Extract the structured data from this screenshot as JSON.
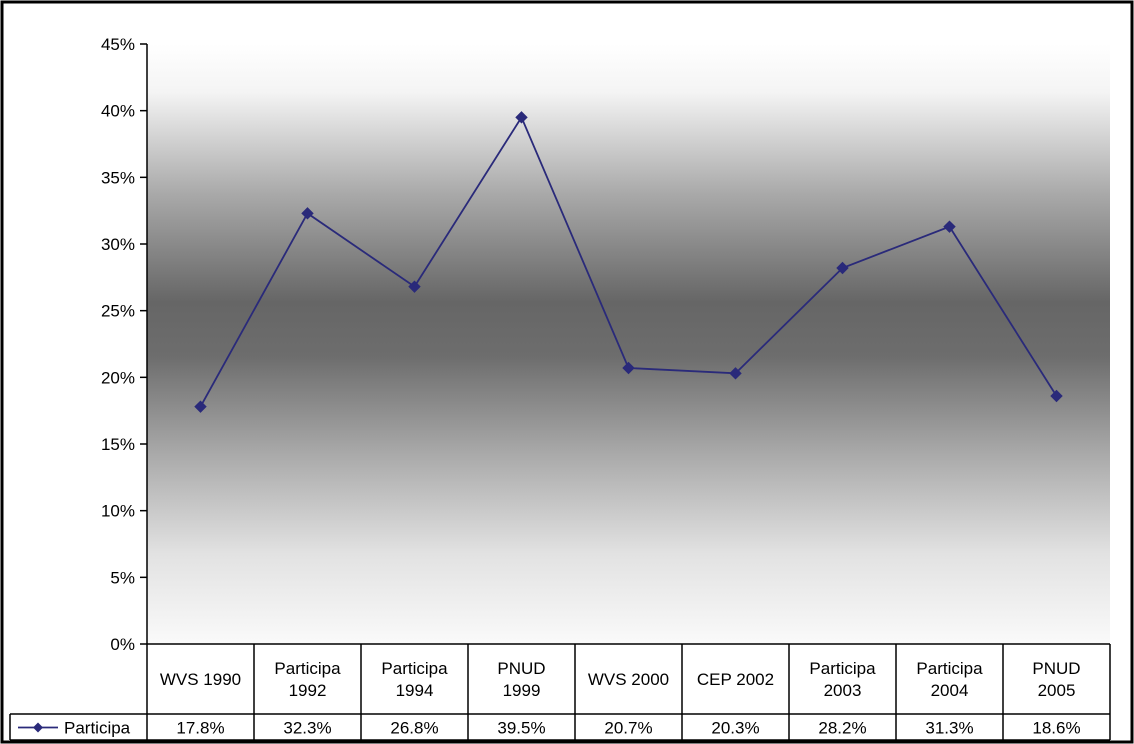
{
  "chart_data": {
    "type": "line",
    "title": "",
    "xlabel": "",
    "ylabel": "",
    "ylim": [
      0,
      45
    ],
    "y_ticks": [
      "0%",
      "5%",
      "10%",
      "15%",
      "20%",
      "25%",
      "30%",
      "35%",
      "40%",
      "45%"
    ],
    "grid": false,
    "categories": [
      [
        "WVS 1990"
      ],
      [
        "Participa",
        "1992"
      ],
      [
        "Participa",
        "1994"
      ],
      [
        "PNUD",
        "1999"
      ],
      [
        "WVS 2000"
      ],
      [
        "CEP 2002"
      ],
      [
        "Participa",
        "2003"
      ],
      [
        "Participa",
        "2004"
      ],
      [
        "PNUD",
        "2005"
      ]
    ],
    "series": [
      {
        "name": "Participa",
        "color": "#2a2a7a",
        "marker": "diamond",
        "values": [
          17.8,
          32.3,
          26.8,
          39.5,
          20.7,
          20.3,
          28.2,
          31.3,
          18.6
        ],
        "labels": [
          "17.8%",
          "32.3%",
          "26.8%",
          "39.5%",
          "20.7%",
          "20.3%",
          "28.2%",
          "31.3%",
          "18.6%"
        ]
      }
    ],
    "data_table": true,
    "background": "vertical gradient white-gray-white"
  }
}
